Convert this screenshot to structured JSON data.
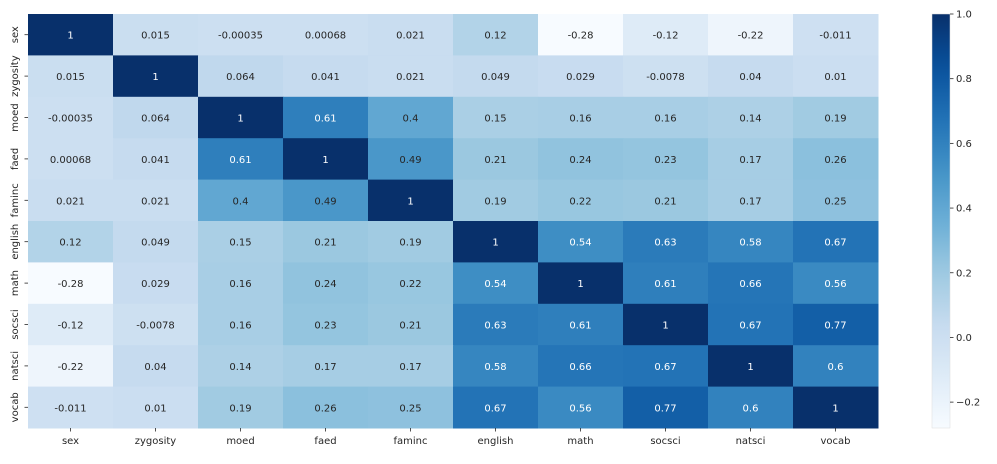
{
  "chart_data": {
    "type": "heatmap",
    "title": "",
    "xlabel": "",
    "ylabel": "",
    "colormap": "Blues",
    "colors": {
      "low": "#f7fbff",
      "high": "#08306b",
      "dark_text": "#262626",
      "light_text": "#ffffff"
    },
    "vmin": -0.28,
    "vmax": 1.0,
    "x_labels": [
      "sex",
      "zygosity",
      "moed",
      "faed",
      "faminc",
      "english",
      "math",
      "socsci",
      "natsci",
      "vocab"
    ],
    "y_labels": [
      "sex",
      "zygosity",
      "moed",
      "faed",
      "faminc",
      "english",
      "math",
      "socsci",
      "natsci",
      "vocab"
    ],
    "values": [
      [
        1,
        0.015,
        -0.00035,
        0.00068,
        0.021,
        0.12,
        -0.28,
        -0.12,
        -0.22,
        -0.011
      ],
      [
        0.015,
        1,
        0.064,
        0.041,
        0.021,
        0.049,
        0.029,
        -0.0078,
        0.04,
        0.01
      ],
      [
        -0.00035,
        0.064,
        1,
        0.61,
        0.4,
        0.15,
        0.16,
        0.16,
        0.14,
        0.19
      ],
      [
        0.00068,
        0.041,
        0.61,
        1,
        0.49,
        0.21,
        0.24,
        0.23,
        0.17,
        0.26
      ],
      [
        0.021,
        0.021,
        0.4,
        0.49,
        1,
        0.19,
        0.22,
        0.21,
        0.17,
        0.25
      ],
      [
        0.12,
        0.049,
        0.15,
        0.21,
        0.19,
        1,
        0.54,
        0.63,
        0.58,
        0.67
      ],
      [
        -0.28,
        0.029,
        0.16,
        0.24,
        0.22,
        0.54,
        1,
        0.61,
        0.66,
        0.56
      ],
      [
        -0.12,
        -0.0078,
        0.16,
        0.23,
        0.21,
        0.63,
        0.61,
        1,
        0.67,
        0.77
      ],
      [
        -0.22,
        0.04,
        0.14,
        0.17,
        0.17,
        0.58,
        0.66,
        0.67,
        1,
        0.6
      ],
      [
        -0.011,
        0.01,
        0.19,
        0.26,
        0.25,
        0.67,
        0.56,
        0.77,
        0.6,
        1
      ]
    ],
    "colorbar": {
      "ticks": [
        1.0,
        0.8,
        0.6,
        0.4,
        0.2,
        0.0,
        -0.2
      ],
      "tick_labels": [
        "1.0",
        "0.8",
        "0.6",
        "0.4",
        "0.2",
        "0.0",
        "−0.2"
      ]
    }
  }
}
